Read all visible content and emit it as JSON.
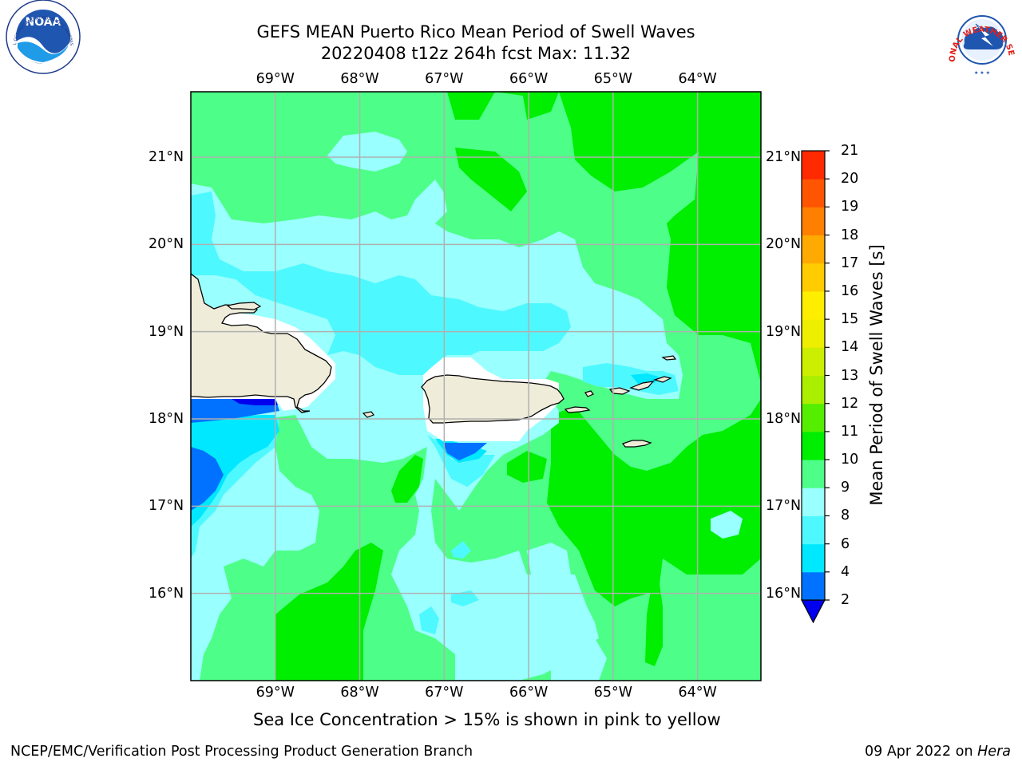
{
  "title": {
    "line1": "GEFS MEAN Puerto Rico Mean Period of Swell Waves",
    "line2": "20220408 t12z 264h fcst   Max: 11.32"
  },
  "map": {
    "type": "filled-contour",
    "lon_range": [
      -70.0,
      -63.25
    ],
    "lat_range": [
      15.0,
      21.75
    ],
    "lon_ticks": [
      {
        "value": -69,
        "label": "69°W"
      },
      {
        "value": -68,
        "label": "68°W"
      },
      {
        "value": -67,
        "label": "67°W"
      },
      {
        "value": -66,
        "label": "66°W"
      },
      {
        "value": -65,
        "label": "65°W"
      },
      {
        "value": -64,
        "label": "64°W"
      }
    ],
    "lat_ticks": [
      {
        "value": 21,
        "label": "21°N"
      },
      {
        "value": 20,
        "label": "20°N"
      },
      {
        "value": 19,
        "label": "19°N"
      },
      {
        "value": 18,
        "label": "18°N"
      },
      {
        "value": 17,
        "label": "17°N"
      },
      {
        "value": 16,
        "label": "16°N"
      }
    ],
    "grid": true,
    "land_color": "#efecda",
    "coast_color": "#000000"
  },
  "colorbar": {
    "label": "Mean Period of Swell Waves [s]",
    "ticks": [
      "2",
      "4",
      "6",
      "8",
      "9",
      "10",
      "11",
      "12",
      "13",
      "14",
      "15",
      "16",
      "17",
      "18",
      "19",
      "20",
      "21"
    ],
    "extend": "min",
    "colors": [
      "#0000ee",
      "#0072ff",
      "#00e8ff",
      "#4ef8ff",
      "#99ffff",
      "#4dff88",
      "#00ee00",
      "#55ee00",
      "#aaee00",
      "#ccee00",
      "#eeee00",
      "#ffee00",
      "#ffcc00",
      "#ffaa00",
      "#ff7f00",
      "#ff5500",
      "#ff2a00",
      "#ff0000"
    ]
  },
  "caption": {
    "text": "Sea Ice Concentration > 15% is shown in pink to yellow"
  },
  "footer": {
    "left": "NCEP/EMC/Verification Post Processing Product Generation Branch",
    "right_date": "09 Apr 2022 on",
    "right_host": "Hera"
  },
  "logos": {
    "left": {
      "icon": "noaa-logo-icon",
      "text": "NOAA"
    },
    "right": {
      "icon": "nws-logo-icon",
      "text": "NATIONAL WEATHER SERVICE"
    }
  }
}
